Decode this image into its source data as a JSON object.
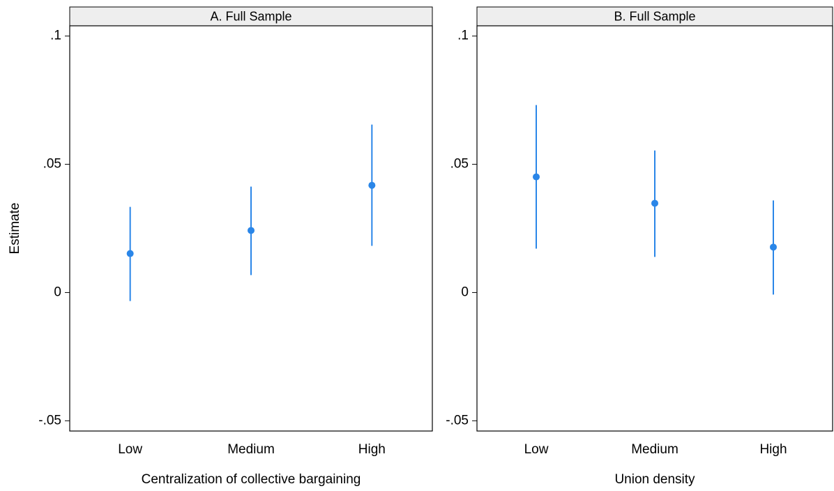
{
  "chart_data": [
    {
      "type": "errorbar",
      "title": "A. Full Sample",
      "ylabel": "Estimate",
      "xlabel": "Centralization of collective bargaining",
      "categories": [
        "Low",
        "Medium",
        "High"
      ],
      "series": [
        {
          "color": "#2a86e8",
          "values": [
            0.0152,
            0.0242,
            0.0418
          ],
          "lower": [
            -0.0033,
            0.0068,
            0.0182
          ],
          "upper": [
            0.0334,
            0.0413,
            0.0655
          ]
        }
      ],
      "ylim": [
        -0.054,
        0.104
      ],
      "yticks": [
        {
          "value": -0.05,
          "label": "-.05"
        },
        0,
        {
          "value": 0.05,
          "label": ".05"
        },
        {
          "value": 0.1,
          "label": ".1"
        }
      ]
    },
    {
      "type": "errorbar",
      "title": "B. Full Sample",
      "xlabel": "Union density",
      "categories": [
        "Low",
        "Medium",
        "High"
      ],
      "series": [
        {
          "color": "#2a86e8",
          "values": [
            0.0451,
            0.0348,
            0.0177
          ],
          "lower": [
            0.0171,
            0.0139,
            -0.0008
          ],
          "upper": [
            0.0731,
            0.0554,
            0.0359
          ]
        }
      ],
      "ylim": [
        -0.054,
        0.104
      ],
      "yticks": [
        {
          "value": -0.05,
          "label": "-.05"
        },
        0,
        {
          "value": 0.05,
          "label": ".05"
        },
        {
          "value": 0.1,
          "label": ".1"
        }
      ]
    }
  ]
}
